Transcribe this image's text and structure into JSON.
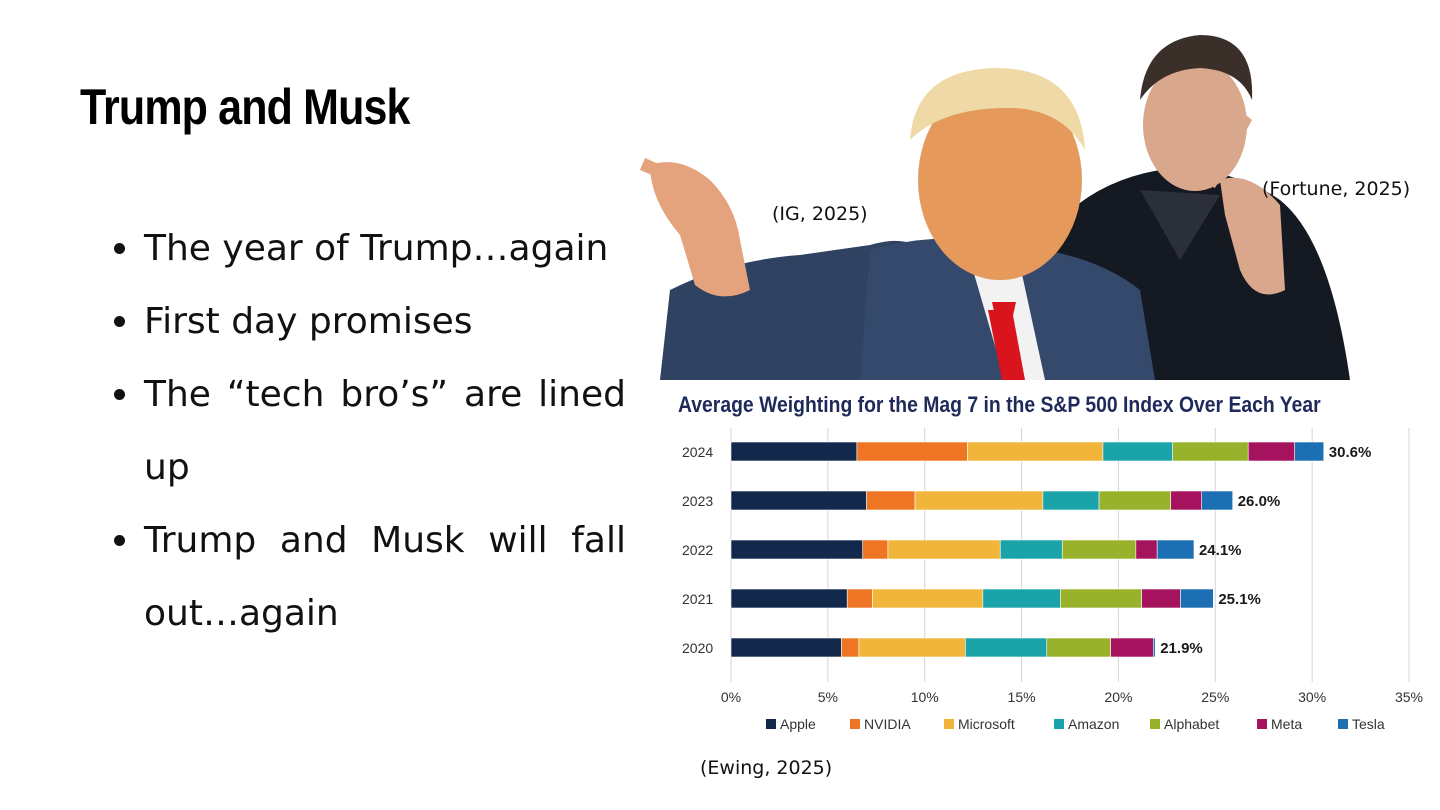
{
  "slide": {
    "title": "Trump and Musk",
    "bullets": [
      "The year of Trump…again",
      "First day promises",
      "The “tech bro’s” are lined up",
      "Trump and Musk will fall out…again"
    ]
  },
  "citations": {
    "trump_photo": "(IG, 2025)",
    "musk_photo": "(Fortune, 2025)",
    "chart": "(Ewing, 2025)"
  },
  "colors": {
    "Apple": "#13294b",
    "NVIDIA": "#ee7523",
    "Microsoft": "#f2b53b",
    "Amazon": "#1aa3a8",
    "Alphabet": "#98b22b",
    "Meta": "#a5135f",
    "Tesla": "#1c6fb3"
  },
  "chart_data": {
    "type": "bar",
    "orientation": "horizontal",
    "stacked": true,
    "title": "Average Weighting for the Mag 7 in the S&P 500 Index Over Each Year",
    "categories": [
      "2024",
      "2023",
      "2022",
      "2021",
      "2020"
    ],
    "series": [
      {
        "name": "Apple",
        "values": [
          6.5,
          7.0,
          6.8,
          6.0,
          5.7
        ]
      },
      {
        "name": "NVIDIA",
        "values": [
          5.7,
          2.5,
          1.3,
          1.3,
          0.9
        ]
      },
      {
        "name": "Microsoft",
        "values": [
          7.0,
          6.6,
          5.8,
          5.7,
          5.5
        ]
      },
      {
        "name": "Amazon",
        "values": [
          3.6,
          2.9,
          3.2,
          4.0,
          4.2
        ]
      },
      {
        "name": "Alphabet",
        "values": [
          3.9,
          3.7,
          3.8,
          4.2,
          3.3
        ]
      },
      {
        "name": "Meta",
        "values": [
          2.4,
          1.6,
          1.1,
          2.0,
          2.2
        ]
      },
      {
        "name": "Tesla",
        "values": [
          1.5,
          1.6,
          1.9,
          1.7,
          0.1
        ]
      }
    ],
    "totals": [
      "30.6%",
      "26.0%",
      "24.1%",
      "25.1%",
      "21.9%"
    ],
    "xlim": [
      0,
      35
    ],
    "xticks": [
      "0%",
      "5%",
      "10%",
      "15%",
      "20%",
      "25%",
      "30%",
      "35%"
    ],
    "grid": true,
    "legend": "bottom"
  }
}
